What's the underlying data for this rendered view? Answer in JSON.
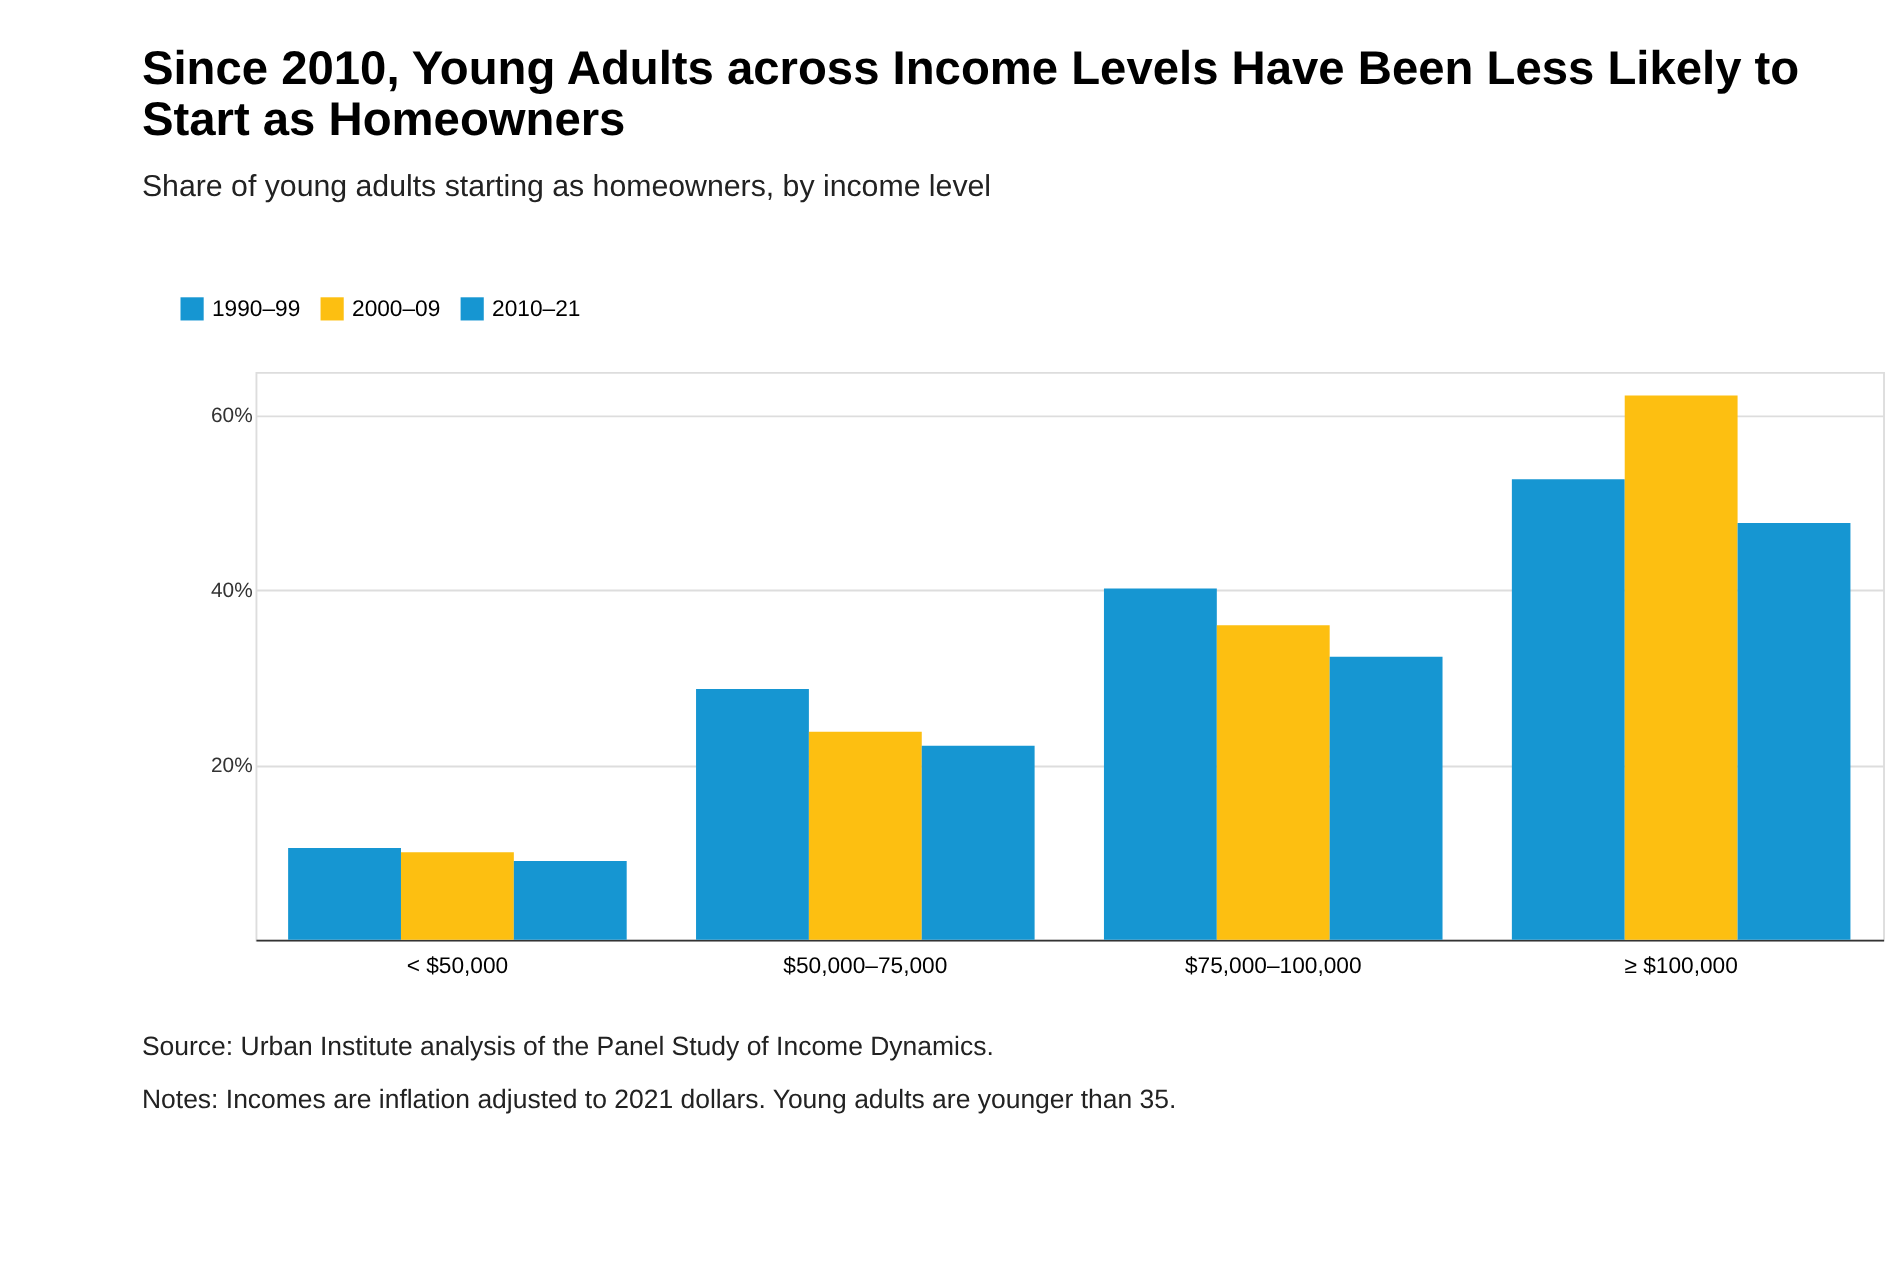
{
  "chart_data": {
    "type": "bar",
    "title": "Since 2010, Young Adults across Income Levels Have Been Less Likely to Start as Homeowners",
    "subtitle": "Share of young adults starting as homeowners, by income level",
    "categories": [
      "< $50,000",
      "$50,000–75,000",
      "$75,000–100,000",
      "≥ $100,000"
    ],
    "series": [
      {
        "name": "1990–99",
        "color": "#1696d2",
        "values": [
          10.5,
          28.7,
          40.2,
          52.7
        ]
      },
      {
        "name": "2000–09",
        "color": "#fdbf11",
        "values": [
          10.0,
          23.8,
          36.0,
          62.3
        ]
      },
      {
        "name": "2010–21",
        "color": "#1696d2",
        "values": [
          9.0,
          22.2,
          32.4,
          47.7
        ]
      }
    ],
    "ylim": [
      0,
      65
    ],
    "yticks": [
      {
        "value": 20,
        "label": "20%"
      },
      {
        "value": 40,
        "label": "40%"
      },
      {
        "value": 60,
        "label": "60%"
      }
    ],
    "grid": "y",
    "legend": "top left",
    "annotations": [
      "Source: Urban Institute analysis of the Panel Study of Income Dynamics.",
      "Notes: Incomes are inflation adjusted to 2021 dollars. Young adults are younger than 35."
    ]
  }
}
